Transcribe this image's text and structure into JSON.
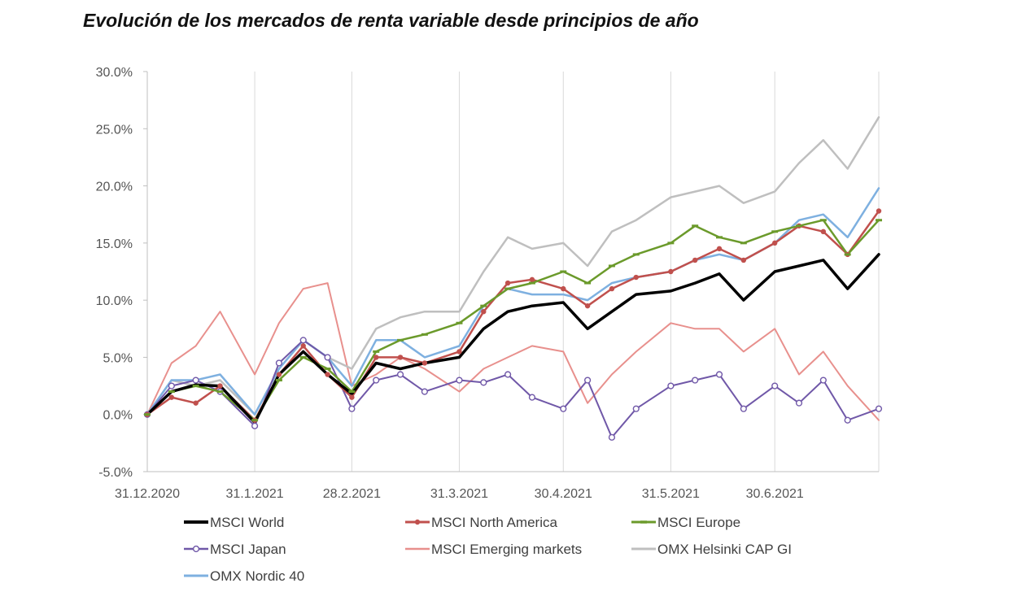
{
  "title": "Evolución de los mercados de renta variable desde principios de año",
  "chart_data": {
    "type": "line",
    "title": "Evolución de los mercados de renta variable desde principios de año",
    "xlabel": "",
    "ylabel": "",
    "x_start": "31.12.2020",
    "x_end": "30.7.2021",
    "x_tick_labels": [
      "31.12.2020",
      "31.1.2021",
      "28.2.2021",
      "31.3.2021",
      "30.4.2021",
      "31.5.2021",
      "30.6.2021"
    ],
    "y_tick_labels": [
      "30.0%",
      "25.0%",
      "20.0%",
      "15.0%",
      "10.0%",
      "5.0%",
      "0.0%",
      "-5.0%"
    ],
    "ylim": [
      -5,
      30
    ],
    "grid": "vertical",
    "legend_position": "bottom",
    "x": [
      "31.12.2020",
      "7.1.2021",
      "14.1.2021",
      "21.1.2021",
      "31.1.2021",
      "7.2.2021",
      "14.2.2021",
      "21.2.2021",
      "28.2.2021",
      "7.3.2021",
      "14.3.2021",
      "21.3.2021",
      "31.3.2021",
      "7.4.2021",
      "14.4.2021",
      "21.4.2021",
      "30.4.2021",
      "7.5.2021",
      "14.5.2021",
      "21.5.2021",
      "31.5.2021",
      "7.6.2021",
      "14.6.2021",
      "21.6.2021",
      "30.6.2021",
      "7.7.2021",
      "14.7.2021",
      "21.7.2021",
      "30.7.2021"
    ],
    "series": [
      {
        "name": "MSCI World",
        "color": "#000000",
        "width": 3.5,
        "marker": "none",
        "values": [
          0.0,
          2.0,
          2.6,
          2.5,
          -0.7,
          3.5,
          5.5,
          3.5,
          1.8,
          4.5,
          4.0,
          4.5,
          5.0,
          7.5,
          9.0,
          9.5,
          9.8,
          7.5,
          9.0,
          10.5,
          10.8,
          11.5,
          12.3,
          10.0,
          12.5,
          13.0,
          13.5,
          11.0,
          14.0
        ]
      },
      {
        "name": "MSCI North America",
        "color": "#c0504d",
        "width": 2.5,
        "marker": "filled",
        "values": [
          0.0,
          1.5,
          1.0,
          2.5,
          -0.5,
          3.5,
          6.0,
          3.5,
          1.5,
          5.0,
          5.0,
          4.5,
          5.5,
          9.0,
          11.5,
          11.8,
          11.0,
          9.5,
          11.0,
          12.0,
          12.5,
          13.5,
          14.5,
          13.5,
          15.0,
          16.5,
          16.0,
          14.0,
          17.8
        ]
      },
      {
        "name": "MSCI Europe",
        "color": "#6b9a2b",
        "width": 2.5,
        "marker": "dash",
        "values": [
          0.0,
          2.0,
          2.5,
          2.0,
          -0.5,
          3.0,
          5.0,
          4.0,
          2.0,
          5.5,
          6.5,
          7.0,
          8.0,
          9.5,
          11.0,
          11.5,
          12.5,
          11.5,
          13.0,
          14.0,
          15.0,
          16.5,
          15.5,
          15.0,
          16.0,
          16.5,
          17.0,
          14.0,
          17.0
        ]
      },
      {
        "name": "MSCI Japan",
        "color": "#7058a8",
        "width": 2,
        "marker": "hollow",
        "values": [
          0.0,
          2.5,
          3.0,
          2.0,
          -1.0,
          4.5,
          6.5,
          5.0,
          0.5,
          3.0,
          3.5,
          2.0,
          3.0,
          2.8,
          3.5,
          1.5,
          0.5,
          3.0,
          -2.0,
          0.5,
          2.5,
          3.0,
          3.5,
          0.5,
          2.5,
          1.0,
          3.0,
          -0.5,
          0.5
        ]
      },
      {
        "name": "MSCI Emerging markets",
        "color": "#e8908d",
        "width": 2,
        "marker": "none",
        "values": [
          0.0,
          4.5,
          6.0,
          9.0,
          3.5,
          8.0,
          11.0,
          11.5,
          2.5,
          3.5,
          5.0,
          4.0,
          2.0,
          4.0,
          5.0,
          6.0,
          5.5,
          1.0,
          3.5,
          5.5,
          8.0,
          7.5,
          7.5,
          5.5,
          7.5,
          3.5,
          5.5,
          2.5,
          -0.5
        ]
      },
      {
        "name": "OMX Helsinki CAP GI",
        "color": "#bfbfbf",
        "width": 2.5,
        "marker": "none",
        "values": [
          0.0,
          3.0,
          2.5,
          3.0,
          0.0,
          4.0,
          6.5,
          5.0,
          4.0,
          7.5,
          8.5,
          9.0,
          9.0,
          12.5,
          15.5,
          14.5,
          15.0,
          13.0,
          16.0,
          17.0,
          19.0,
          19.5,
          20.0,
          18.5,
          19.5,
          22.0,
          24.0,
          21.5,
          26.0
        ]
      },
      {
        "name": "OMX Nordic 40",
        "color": "#7eb0e0",
        "width": 2.5,
        "marker": "none",
        "values": [
          0.0,
          3.0,
          3.0,
          3.5,
          0.0,
          4.0,
          6.5,
          5.0,
          2.5,
          6.5,
          6.5,
          5.0,
          6.0,
          9.5,
          11.0,
          10.5,
          10.5,
          10.0,
          11.5,
          12.0,
          12.5,
          13.5,
          14.0,
          13.5,
          15.0,
          17.0,
          17.5,
          15.5,
          19.8
        ]
      }
    ]
  }
}
